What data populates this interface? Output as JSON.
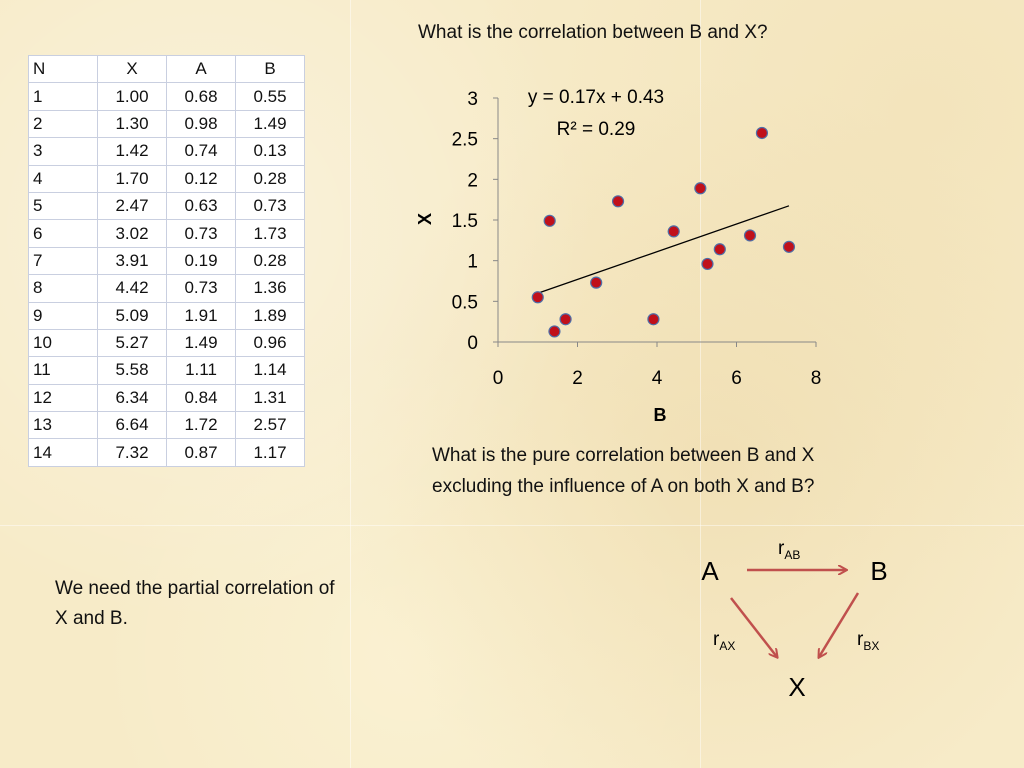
{
  "question1": "What is the correlation between B and X?",
  "question2_line1": "What is the pure correlation between B and X",
  "question2_line2": "excluding the influence of A on both X and B?",
  "note_line1": "We need the partial correlation of",
  "note_line2": "X and B.",
  "table": {
    "headers": [
      "N",
      "X",
      "A",
      "B"
    ],
    "rows": [
      [
        "1",
        "1.00",
        "0.68",
        "0.55"
      ],
      [
        "2",
        "1.30",
        "0.98",
        "1.49"
      ],
      [
        "3",
        "1.42",
        "0.74",
        "0.13"
      ],
      [
        "4",
        "1.70",
        "0.12",
        "0.28"
      ],
      [
        "5",
        "2.47",
        "0.63",
        "0.73"
      ],
      [
        "6",
        "3.02",
        "0.73",
        "1.73"
      ],
      [
        "7",
        "3.91",
        "0.19",
        "0.28"
      ],
      [
        "8",
        "4.42",
        "0.73",
        "1.36"
      ],
      [
        "9",
        "5.09",
        "1.91",
        "1.89"
      ],
      [
        "10",
        "5.27",
        "1.49",
        "0.96"
      ],
      [
        "11",
        "5.58",
        "1.11",
        "1.14"
      ],
      [
        "12",
        "6.34",
        "0.84",
        "1.31"
      ],
      [
        "13",
        "6.64",
        "1.72",
        "2.57"
      ],
      [
        "14",
        "7.32",
        "0.87",
        "1.17"
      ]
    ]
  },
  "chart_data": {
    "type": "scatter",
    "xlabel": "B",
    "ylabel": "X",
    "xlim": [
      0,
      8
    ],
    "ylim": [
      0,
      3
    ],
    "xticks": [
      "0",
      "2",
      "4",
      "6",
      "8"
    ],
    "yticks": [
      "0",
      "0.5",
      "1",
      "1.5",
      "2",
      "2.5",
      "3"
    ],
    "points": [
      [
        1.0,
        0.55
      ],
      [
        1.3,
        1.49
      ],
      [
        1.42,
        0.13
      ],
      [
        1.7,
        0.28
      ],
      [
        2.47,
        0.73
      ],
      [
        3.02,
        1.73
      ],
      [
        3.91,
        0.28
      ],
      [
        4.42,
        1.36
      ],
      [
        5.09,
        1.89
      ],
      [
        5.27,
        0.96
      ],
      [
        5.58,
        1.14
      ],
      [
        6.34,
        1.31
      ],
      [
        6.64,
        2.57
      ],
      [
        7.32,
        1.17
      ]
    ],
    "trendline": {
      "slope": 0.17,
      "intercept": 0.43,
      "x_from": 1.0,
      "x_to": 7.32
    },
    "equation": "y = 0.17x + 0.43",
    "r_squared": "R² = 0.29",
    "point_color": "#c0101a",
    "point_edge_color": "#4f6fa8",
    "grid": false
  },
  "diagram": {
    "node_a": "A",
    "node_b": "B",
    "node_x": "X",
    "r": "r",
    "sub_ab": "AB",
    "sub_ax": "AX",
    "sub_bx": "BX",
    "arrow_color": "#c0504d"
  }
}
